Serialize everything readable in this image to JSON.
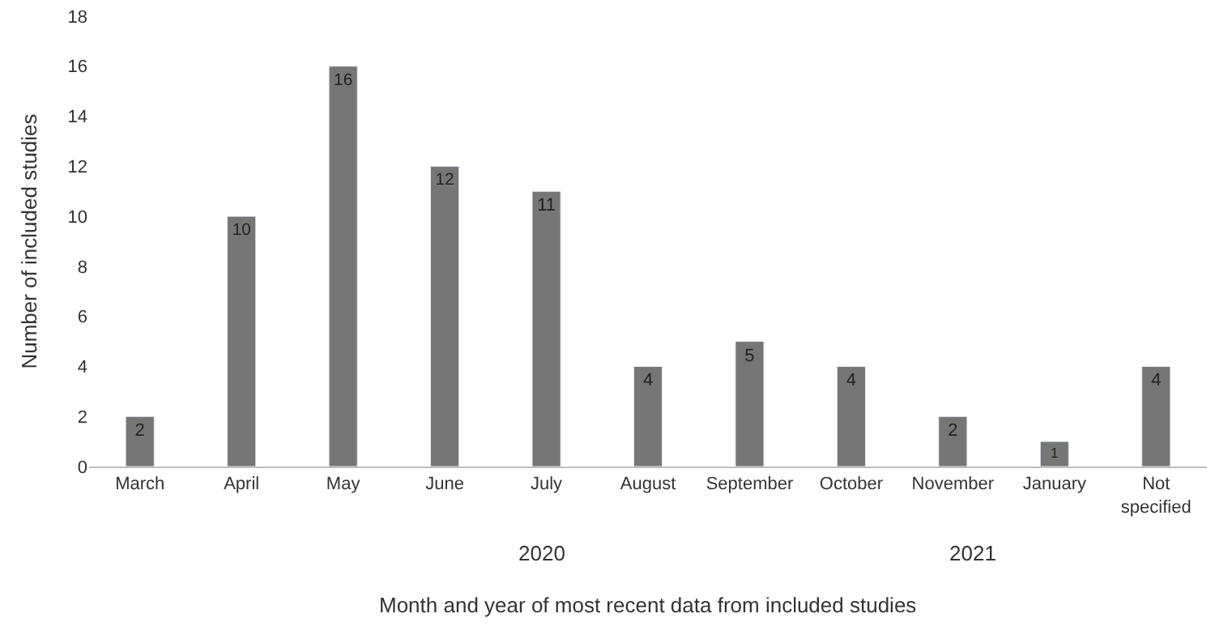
{
  "chart_data": {
    "type": "bar",
    "xlabel": "Month and year of most recent data from included studies",
    "ylabel": "Number of included studies",
    "categories": [
      "March",
      "April",
      "May",
      "June",
      "July",
      "August",
      "September",
      "October",
      "November",
      "January",
      "Not specified"
    ],
    "values": [
      2,
      10,
      16,
      12,
      11,
      4,
      5,
      4,
      2,
      1,
      4
    ],
    "color": "#767676",
    "ylim": [
      0,
      18
    ],
    "yticks": [
      0,
      2,
      4,
      6,
      8,
      10,
      12,
      14,
      16,
      18
    ],
    "grid": false,
    "data_labels": true,
    "annotations": [
      "2020",
      "2021"
    ]
  }
}
